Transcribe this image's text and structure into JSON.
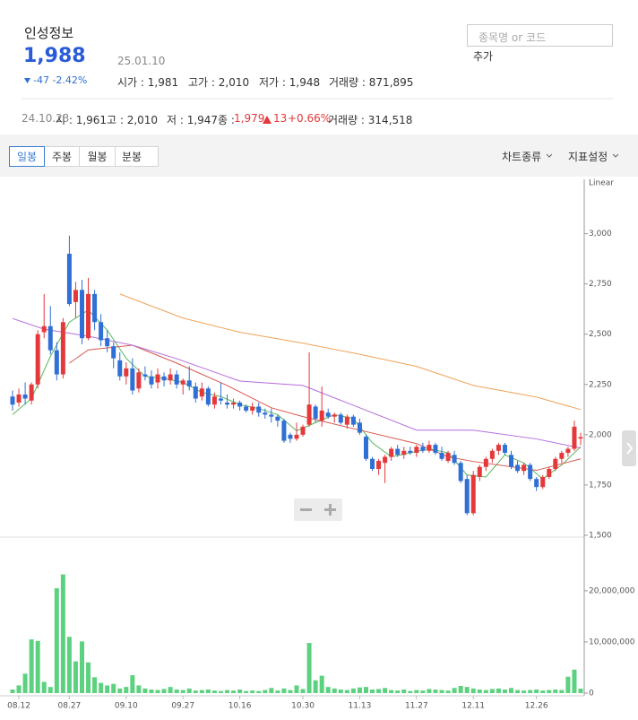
{
  "stock": {
    "name": "인성정보",
    "price": "1,988",
    "date": "25.01.10",
    "change": "-47 -2.42%",
    "stats": [
      "시가 : 1,981",
      "고가 : 2,010",
      "저가 : 1,948",
      "거래량 : 871,895"
    ],
    "search_placeholder": "종목명 or 코드",
    "add_button": "추가"
  },
  "hover": {
    "date": "24.10.23",
    "stats": [
      "시 : 1,961",
      "고 : 2,010",
      "저 : 1,947"
    ],
    "close_label": "종 :",
    "close": "1,979",
    "change": "13",
    "change_pct": "+0.66%",
    "volume": "거래량 : 314,518"
  },
  "toolbar": {
    "tabs": [
      "일봉",
      "주봉",
      "월봉",
      "분봉"
    ],
    "menus": [
      "차트종류",
      "지표설정"
    ]
  },
  "chart_data": {
    "type": "candlestick",
    "scale_label": "Linear",
    "categories": [
      null,
      "08.12",
      null,
      null,
      null,
      null,
      null,
      null,
      null,
      "08.27",
      null,
      null,
      null,
      null,
      null,
      null,
      null,
      null,
      "09.10",
      null,
      null,
      null,
      null,
      null,
      null,
      null,
      null,
      "09.27",
      null,
      null,
      null,
      null,
      null,
      null,
      null,
      null,
      "10.16",
      null,
      null,
      null,
      null,
      null,
      null,
      null,
      null,
      null,
      "10.30",
      null,
      null,
      null,
      null,
      null,
      null,
      null,
      null,
      "11.13",
      null,
      null,
      null,
      null,
      null,
      null,
      null,
      null,
      "11.27",
      null,
      null,
      null,
      null,
      null,
      null,
      null,
      null,
      "12.11",
      null,
      null,
      null,
      null,
      null,
      null,
      null,
      null,
      null,
      "12.26",
      null,
      null,
      null,
      null,
      null,
      null,
      null
    ],
    "ohlc": [
      [
        2190,
        2220,
        2120,
        2150
      ],
      [
        2160,
        2230,
        2140,
        2200
      ],
      [
        2200,
        2260,
        2150,
        2180
      ],
      [
        2170,
        2260,
        2150,
        2250
      ],
      [
        2250,
        2520,
        2230,
        2500
      ],
      [
        2510,
        2700,
        2480,
        2540
      ],
      [
        2540,
        2640,
        2400,
        2420
      ],
      [
        2420,
        2460,
        2270,
        2300
      ],
      [
        2300,
        2580,
        2280,
        2560
      ],
      [
        2900,
        2990,
        2640,
        2650
      ],
      [
        2660,
        2760,
        2580,
        2720
      ],
      [
        2720,
        2770,
        2450,
        2480
      ],
      [
        2480,
        2780,
        2470,
        2700
      ],
      [
        2700,
        2720,
        2520,
        2560
      ],
      [
        2560,
        2600,
        2440,
        2470
      ],
      [
        2480,
        2520,
        2410,
        2440
      ],
      [
        2440,
        2460,
        2330,
        2380
      ],
      [
        2370,
        2410,
        2270,
        2290
      ],
      [
        2290,
        2360,
        2250,
        2330
      ],
      [
        2330,
        2380,
        2200,
        2220
      ],
      [
        2230,
        2330,
        2210,
        2310
      ],
      [
        2300,
        2340,
        2270,
        2290
      ],
      [
        2290,
        2320,
        2230,
        2250
      ],
      [
        2260,
        2330,
        2230,
        2300
      ],
      [
        2290,
        2310,
        2240,
        2270
      ],
      [
        2270,
        2330,
        2250,
        2300
      ],
      [
        2300,
        2320,
        2230,
        2250
      ],
      [
        2250,
        2280,
        2200,
        2270
      ],
      [
        2270,
        2340,
        2220,
        2240
      ],
      [
        2240,
        2260,
        2160,
        2180
      ],
      [
        2190,
        2260,
        2170,
        2230
      ],
      [
        2230,
        2240,
        2140,
        2150
      ],
      [
        2150,
        2210,
        2130,
        2190
      ],
      [
        2180,
        2260,
        2150,
        2170
      ],
      [
        2160,
        2200,
        2130,
        2150
      ],
      [
        2150,
        2180,
        2130,
        2160
      ],
      [
        2160,
        2170,
        2120,
        2140
      ],
      [
        2140,
        2150,
        2110,
        2120
      ],
      [
        2120,
        2160,
        2100,
        2140
      ],
      [
        2140,
        2160,
        2090,
        2110
      ],
      [
        2110,
        2130,
        2080,
        2100
      ],
      [
        2100,
        2130,
        2060,
        2090
      ],
      [
        2090,
        2100,
        2040,
        2070
      ],
      [
        2070,
        2080,
        1960,
        1970
      ],
      [
        2000,
        2010,
        1960,
        1980
      ],
      [
        1980,
        2060,
        1970,
        2000
      ],
      [
        2000,
        2050,
        1990,
        2040
      ],
      [
        2050,
        2410,
        2040,
        2150
      ],
      [
        2140,
        2150,
        2060,
        2080
      ],
      [
        2070,
        2240,
        2040,
        2120
      ],
      [
        2110,
        2130,
        2080,
        2090
      ],
      [
        2090,
        2110,
        2060,
        2100
      ],
      [
        2100,
        2110,
        2050,
        2060
      ],
      [
        2050,
        2100,
        2030,
        2090
      ],
      [
        2090,
        2100,
        2040,
        2050
      ],
      [
        2060,
        2080,
        2000,
        2010
      ],
      [
        1990,
        2000,
        1870,
        1880
      ],
      [
        1880,
        1890,
        1820,
        1830
      ],
      [
        1830,
        1880,
        1800,
        1870
      ],
      [
        1860,
        1900,
        1760,
        1890
      ],
      [
        1890,
        1940,
        1870,
        1930
      ],
      [
        1930,
        1950,
        1890,
        1900
      ],
      [
        1900,
        1940,
        1880,
        1920
      ],
      [
        1920,
        1940,
        1900,
        1910
      ],
      [
        1910,
        1950,
        1890,
        1940
      ],
      [
        1940,
        1960,
        1910,
        1920
      ],
      [
        1920,
        1970,
        1910,
        1950
      ],
      [
        1950,
        1960,
        1900,
        1910
      ],
      [
        1910,
        1940,
        1870,
        1880
      ],
      [
        1870,
        1920,
        1860,
        1910
      ],
      [
        1900,
        1920,
        1850,
        1860
      ],
      [
        1860,
        1870,
        1760,
        1770
      ],
      [
        1780,
        1800,
        1600,
        1610
      ],
      [
        1610,
        1820,
        1600,
        1800
      ],
      [
        1790,
        1850,
        1770,
        1840
      ],
      [
        1840,
        1890,
        1820,
        1880
      ],
      [
        1880,
        1930,
        1860,
        1920
      ],
      [
        1920,
        1960,
        1900,
        1950
      ],
      [
        1950,
        1960,
        1900,
        1910
      ],
      [
        1900,
        1920,
        1830,
        1840
      ],
      [
        1850,
        1870,
        1810,
        1820
      ],
      [
        1820,
        1860,
        1800,
        1850
      ],
      [
        1850,
        1860,
        1770,
        1780
      ],
      [
        1780,
        1790,
        1720,
        1740
      ],
      [
        1740,
        1800,
        1730,
        1790
      ],
      [
        1790,
        1840,
        1780,
        1830
      ],
      [
        1830,
        1890,
        1820,
        1880
      ],
      [
        1880,
        1920,
        1860,
        1910
      ],
      [
        1910,
        1940,
        1890,
        1930
      ],
      [
        1930,
        2070,
        1920,
        2040
      ],
      [
        1981,
        2010,
        1948,
        1988
      ]
    ],
    "up_color": "#e5383b",
    "down_color": "#2f6fd6",
    "ma_lines": [
      {
        "color": "#58b85c",
        "x": [
          0,
          3,
          6,
          9,
          12,
          15,
          18,
          21,
          24,
          27,
          30,
          33,
          36,
          39,
          42,
          45,
          48,
          51,
          54,
          57,
          60,
          63,
          66,
          69,
          72,
          75,
          78,
          81,
          84,
          87,
          90
        ],
        "values": [
          2100,
          2180,
          2390,
          2560,
          2620,
          2520,
          2380,
          2290,
          2280,
          2260,
          2210,
          2190,
          2150,
          2130,
          2100,
          2020,
          2060,
          2100,
          2080,
          1960,
          1890,
          1910,
          1930,
          1910,
          1800,
          1790,
          1900,
          1860,
          1780,
          1850,
          1940
        ]
      },
      {
        "color": "#d9574f",
        "x": [
          9,
          12,
          19,
          26,
          34,
          41,
          46,
          55,
          64,
          69,
          73,
          83,
          90
        ],
        "values": [
          2356,
          2422,
          2445,
          2356,
          2245,
          2134,
          2090,
          2023,
          1956,
          1890,
          1867,
          1823,
          1880
        ]
      },
      {
        "color": "#b46ddd",
        "x": [
          0,
          5,
          12,
          19,
          26,
          36,
          46,
          55,
          64,
          73,
          83,
          90
        ],
        "values": [
          2578,
          2525,
          2490,
          2445,
          2378,
          2267,
          2245,
          2134,
          2023,
          2023,
          1979,
          1934
        ]
      },
      {
        "color": "#f0a35a",
        "x": [
          17,
          27,
          36,
          46,
          55,
          64,
          73,
          83,
          90
        ],
        "values": [
          2700,
          2580,
          2510,
          2455,
          2400,
          2340,
          2245,
          2187,
          2125
        ]
      }
    ],
    "ylim": [
      1500,
      3270
    ],
    "yticks": [
      {
        "value": 1500,
        "label": "1,500"
      },
      {
        "value": 1750,
        "label": "1,750"
      },
      {
        "value": 2000,
        "label": "2,000"
      },
      {
        "value": 2250,
        "label": "2,250"
      },
      {
        "value": 2500,
        "label": "2,500"
      },
      {
        "value": 2750,
        "label": "2,750"
      },
      {
        "value": 3000,
        "label": "3,000"
      }
    ],
    "volume": [
      700000,
      1500000,
      3800000,
      10500000,
      10200000,
      2200000,
      1200000,
      20500000,
      23200000,
      11000000,
      6200000,
      10100000,
      6000000,
      3100000,
      2000000,
      1500000,
      1800000,
      900000,
      1200000,
      3500000,
      1500000,
      900000,
      700000,
      600000,
      800000,
      1200000,
      700000,
      600000,
      900000,
      500000,
      600000,
      700000,
      500000,
      400000,
      600000,
      500000,
      700000,
      400000,
      500000,
      400000,
      600000,
      1000000,
      500000,
      900000,
      600000,
      1500000,
      800000,
      9800000,
      2500000,
      3400000,
      1200000,
      900000,
      700000,
      600000,
      900000,
      1100000,
      1200000,
      700000,
      800000,
      1000000,
      600000,
      500000,
      700000,
      400000,
      600000,
      500000,
      800000,
      700000,
      600000,
      500000,
      1000000,
      1400000,
      1200000,
      900000,
      700000,
      600000,
      800000,
      900000,
      700000,
      1000000,
      600000,
      500000,
      600000,
      700000,
      500000,
      600000,
      700000,
      600000,
      3200000,
      4600000,
      871895
    ],
    "volume_color": "#5cd17f",
    "volume_ylim": [
      0,
      29800000
    ],
    "volume_yticks": [
      0,
      {
        "value": 10000000,
        "label": "10,000,000"
      },
      {
        "value": 20000000,
        "label": "20,000,000"
      }
    ]
  }
}
